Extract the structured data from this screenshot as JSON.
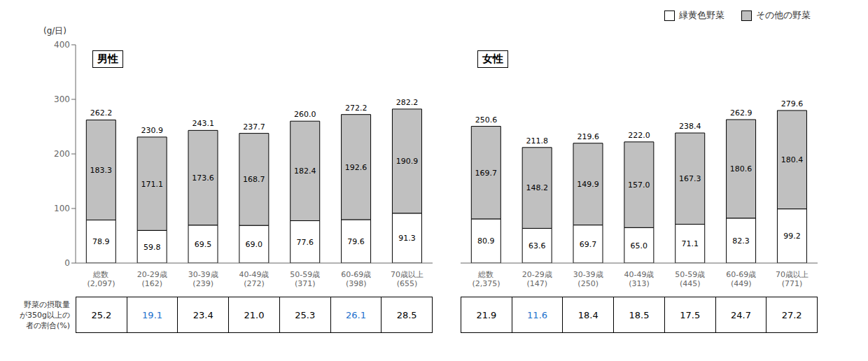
{
  "chart_data": [
    {
      "type": "bar",
      "title": "男性",
      "stacked": true,
      "data_labels": true,
      "grid": false,
      "ylabel": "(g/日)",
      "categories": [
        "総数\n(2,097)",
        "20-29歳\n(162)",
        "30-39歳\n(239)",
        "40-49歳\n(272)",
        "50-59歳\n(371)",
        "60-69歳\n(398)",
        "70歳以上\n(655)"
      ],
      "series": [
        {
          "name": "緑黄色野菜",
          "color": "#ffffff",
          "values": [
            78.9,
            59.8,
            69.5,
            69.0,
            77.6,
            79.6,
            91.3
          ],
          "value_labels": [
            "78.9",
            "59.8",
            "69.5",
            "69.0",
            "77.6",
            "79.6",
            "91.3"
          ]
        },
        {
          "name": "その他の野菜",
          "color": "#c0c0c0",
          "values": [
            183.3,
            171.1,
            173.6,
            168.7,
            182.4,
            192.6,
            190.9
          ],
          "value_labels": [
            "183.3",
            "171.1",
            "173.6",
            "168.7",
            "182.4",
            "192.6",
            "190.9"
          ]
        }
      ],
      "totals": [
        262.2,
        230.9,
        243.1,
        237.7,
        260.0,
        272.2,
        282.2
      ],
      "total_labels": [
        "262.2",
        "230.9",
        "243.1",
        "237.7",
        "260.0",
        "272.2",
        "282.2"
      ],
      "ylim": [
        0,
        400
      ],
      "yticks": [
        0,
        100,
        200,
        300,
        400
      ],
      "table": {
        "label_lines": [
          "野菜の摂取量",
          "が350g以上の",
          "者の割合(%)"
        ],
        "values": [
          25.2,
          19.1,
          23.4,
          21.0,
          25.3,
          26.1,
          28.5
        ],
        "value_labels": [
          "25.2",
          "19.1",
          "23.4",
          "21.0",
          "25.3",
          "26.1",
          "28.5"
        ],
        "highlight": [
          false,
          true,
          false,
          false,
          false,
          true,
          false
        ],
        "color": "#000000",
        "highlight_color": "#1a6fcc"
      }
    },
    {
      "type": "bar",
      "title": "女性",
      "stacked": true,
      "data_labels": true,
      "grid": false,
      "tick_labels": "x",
      "legend": "upper right",
      "categories": [
        "総数\n(2,375)",
        "20-29歳\n(147)",
        "30-39歳\n(250)",
        "40-49歳\n(313)",
        "50-59歳\n(445)",
        "60-69歳\n(449)",
        "70歳以上\n(771)"
      ],
      "series": [
        {
          "name": "緑黄色野菜",
          "color": "#ffffff",
          "values": [
            80.9,
            63.6,
            69.7,
            65.0,
            71.1,
            82.3,
            99.2
          ],
          "value_labels": [
            "80.9",
            "63.6",
            "69.7",
            "65.0",
            "71.1",
            "82.3",
            "99.2"
          ]
        },
        {
          "name": "その他の野菜",
          "color": "#c0c0c0",
          "values": [
            169.7,
            148.2,
            149.9,
            157.0,
            167.3,
            180.6,
            180.4
          ],
          "value_labels": [
            "169.7",
            "148.2",
            "149.9",
            "157.0",
            "167.3",
            "180.6",
            "180.4"
          ]
        }
      ],
      "totals": [
        250.6,
        211.8,
        219.6,
        222.0,
        238.4,
        262.9,
        279.6
      ],
      "total_labels": [
        "250.6",
        "211.8",
        "219.6",
        "222.0",
        "238.4",
        "262.9",
        "279.6"
      ],
      "ylim": [
        0,
        400
      ],
      "yticks": [
        0,
        100,
        200,
        300,
        400
      ],
      "table": {
        "values": [
          21.9,
          11.6,
          18.4,
          18.5,
          17.5,
          24.7,
          27.2
        ],
        "value_labels": [
          "21.9",
          "11.6",
          "18.4",
          "18.5",
          "17.5",
          "24.7",
          "27.2"
        ],
        "highlight": [
          false,
          true,
          false,
          false,
          false,
          false,
          false
        ],
        "color": "#000000",
        "highlight_color": "#1a6fcc"
      }
    }
  ]
}
